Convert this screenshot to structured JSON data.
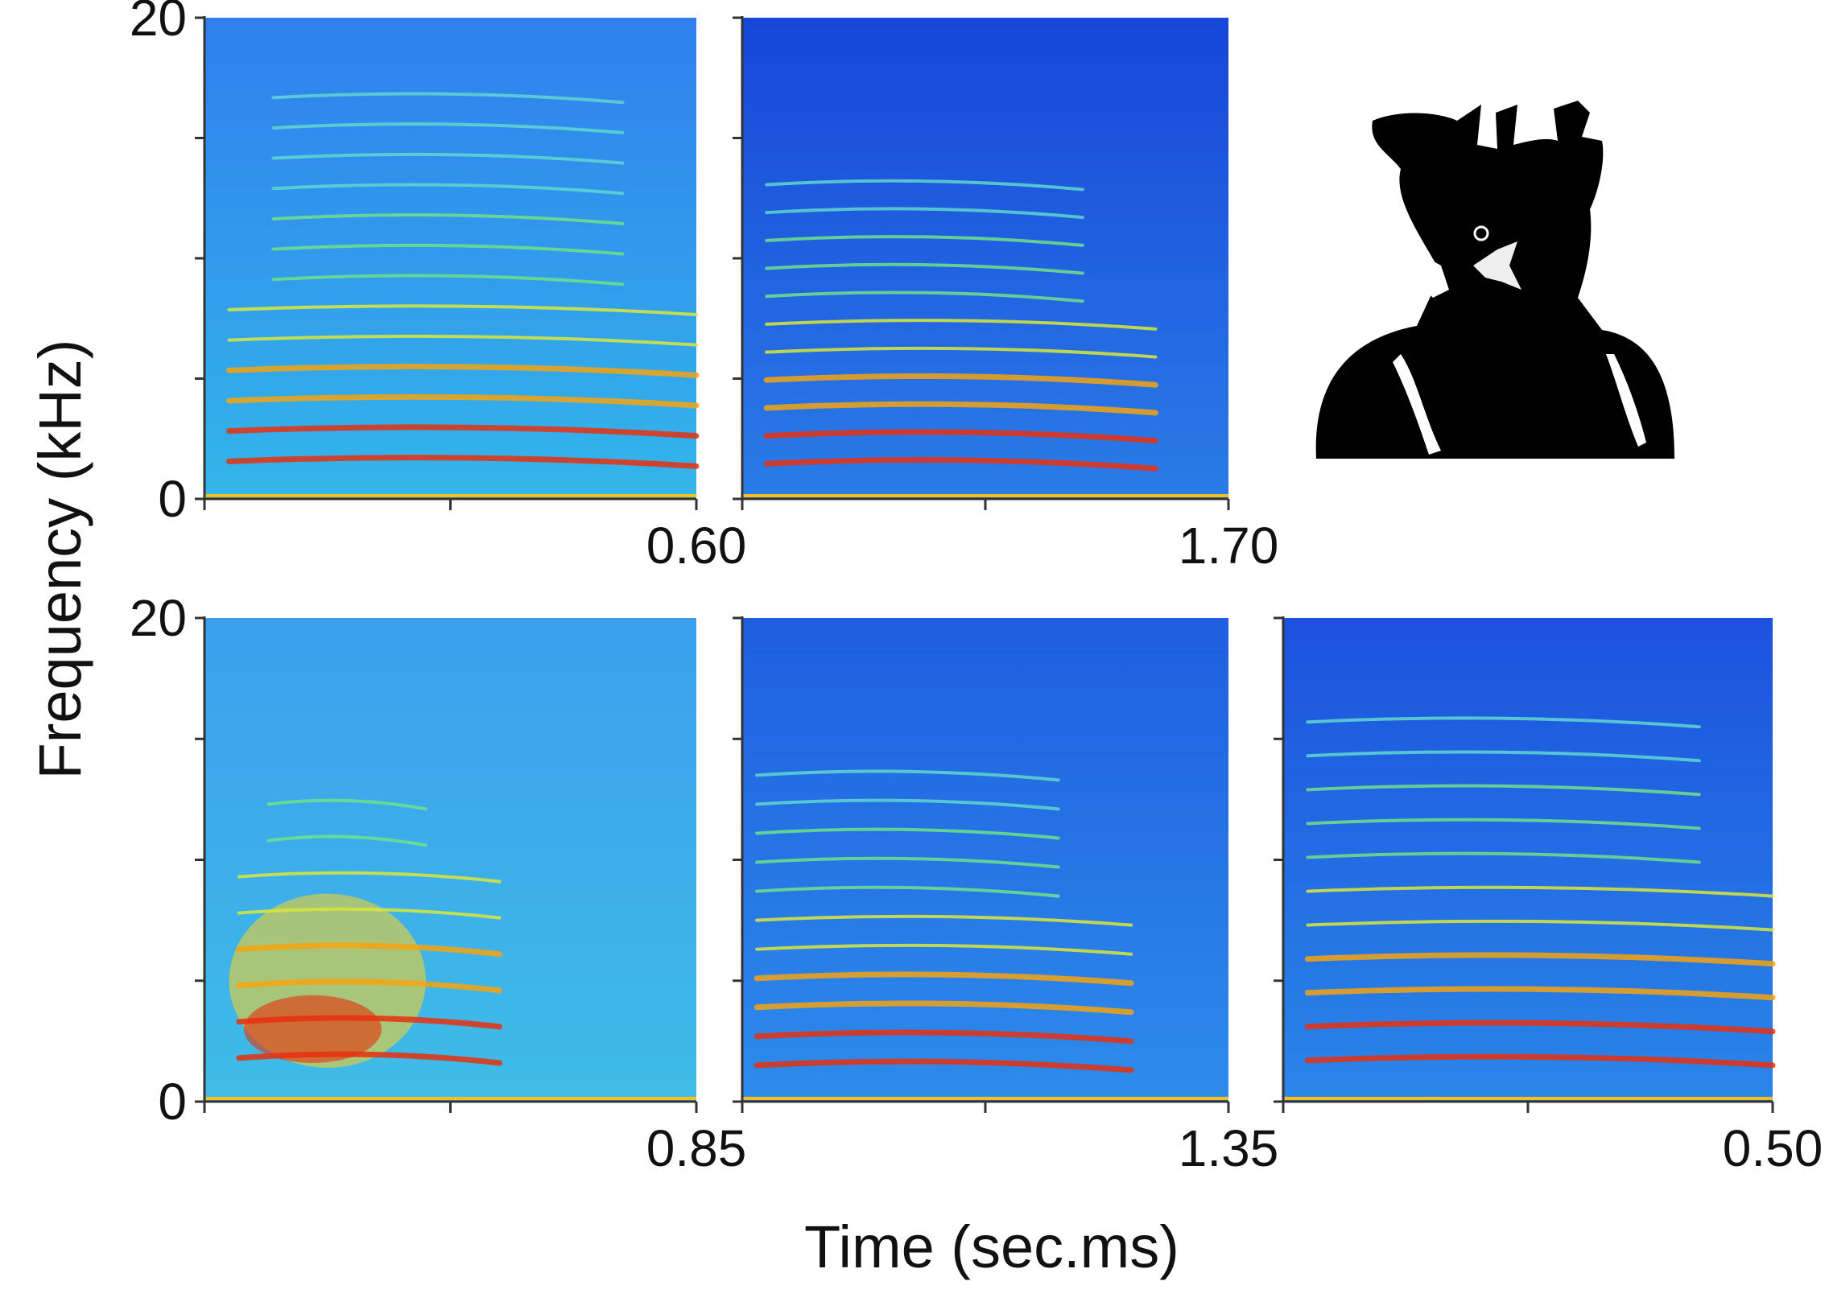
{
  "xlabel": "Time (sec.ms)",
  "ylabel": "Frequency (kHz)",
  "chart_data": [
    {
      "type": "spectrogram",
      "xlim": [
        0,
        0.6
      ],
      "ylim": [
        0,
        20
      ],
      "xticks": [
        {
          "value": 0,
          "label": null
        },
        {
          "value": 0.3,
          "label": null
        },
        {
          "value": 0.6,
          "label": "0.60"
        }
      ],
      "yticks": [
        0,
        {
          "value": 5,
          "label": null
        },
        {
          "value": 10,
          "label": null
        },
        {
          "value": 15,
          "label": null
        },
        20
      ]
    },
    {
      "type": "spectrogram",
      "xlim": [
        0,
        1.7
      ],
      "ylim": [
        0,
        20
      ],
      "xticks": [
        {
          "value": 0,
          "label": null
        },
        {
          "value": 0.85,
          "label": null
        },
        {
          "value": 1.7,
          "label": "1.70"
        }
      ],
      "yticks": [
        {
          "value": 0,
          "label": null
        },
        {
          "value": 5,
          "label": null
        },
        {
          "value": 10,
          "label": null
        },
        {
          "value": 15,
          "label": null
        },
        {
          "value": 20,
          "label": null
        }
      ]
    },
    {
      "type": "spectrogram",
      "xlim": [
        0,
        0.85
      ],
      "ylim": [
        0,
        20
      ],
      "xticks": [
        {
          "value": 0,
          "label": null
        },
        {
          "value": 0.425,
          "label": null
        },
        0.85
      ],
      "yticks": [
        0,
        {
          "value": 5,
          "label": null
        },
        {
          "value": 10,
          "label": null
        },
        {
          "value": 15,
          "label": null
        },
        20
      ]
    },
    {
      "type": "spectrogram",
      "xlim": [
        0,
        1.35
      ],
      "ylim": [
        0,
        20
      ],
      "xticks": [
        {
          "value": 0,
          "label": null
        },
        {
          "value": 0.675,
          "label": null
        },
        1.35
      ],
      "yticks": [
        {
          "value": 0,
          "label": null
        },
        {
          "value": 5,
          "label": null
        },
        {
          "value": 10,
          "label": null
        },
        {
          "value": 15,
          "label": null
        },
        {
          "value": 20,
          "label": null
        }
      ]
    },
    {
      "type": "spectrogram",
      "xlim": [
        0,
        0.5
      ],
      "ylim": [
        0,
        20
      ],
      "xticks": [
        {
          "value": 0,
          "label": null
        },
        {
          "value": 0.25,
          "label": null
        },
        {
          "value": 0.5,
          "label": "0.50"
        }
      ],
      "yticks": [
        {
          "value": 0,
          "label": null
        },
        {
          "value": 5,
          "label": null
        },
        {
          "value": 10,
          "label": null
        },
        {
          "value": 15,
          "label": null
        },
        {
          "value": 20,
          "label": null
        }
      ]
    }
  ]
}
